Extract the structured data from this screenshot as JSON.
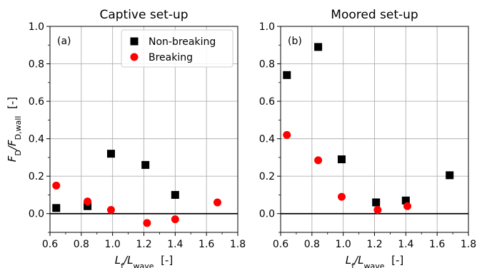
{
  "chart_data": [
    {
      "type": "scatter",
      "title": "Captive set-up",
      "panel_tag": "(a)",
      "xlabel": "L_f/L_wave [-]",
      "ylabel": "F_D/F_D,wall [-]",
      "xlim": [
        0.6,
        1.8
      ],
      "ylim": [
        -0.1,
        1.0
      ],
      "xticks": [
        "0.6",
        "0.8",
        "1.0",
        "1.2",
        "1.4",
        "1.6",
        "1.8"
      ],
      "yticks": [
        "0.0",
        "0.2",
        "0.4",
        "0.6",
        "0.8",
        "1.0"
      ],
      "grid": true,
      "zero_line": true,
      "legend_position": "top-right",
      "series": [
        {
          "name": "Non-breaking",
          "marker": "square",
          "color": "#000000",
          "points": [
            [
              0.64,
              0.03
            ],
            [
              0.84,
              0.04
            ],
            [
              0.99,
              0.32
            ],
            [
              1.21,
              0.26
            ],
            [
              1.4,
              0.1
            ]
          ]
        },
        {
          "name": "Breaking",
          "marker": "circle",
          "color": "#ff0000",
          "points": [
            [
              0.64,
              0.15
            ],
            [
              0.84,
              0.065
            ],
            [
              0.99,
              0.02
            ],
            [
              1.22,
              -0.05
            ],
            [
              1.4,
              -0.03
            ],
            [
              1.67,
              0.06
            ]
          ]
        }
      ]
    },
    {
      "type": "scatter",
      "title": "Moored set-up",
      "panel_tag": "(b)",
      "xlabel": "L_f/L_wave [-]",
      "ylabel": "",
      "xlim": [
        0.6,
        1.8
      ],
      "ylim": [
        -0.1,
        1.0
      ],
      "xticks": [
        "0.6",
        "0.8",
        "1.0",
        "1.2",
        "1.4",
        "1.6",
        "1.8"
      ],
      "yticks": [
        "0.0",
        "0.2",
        "0.4",
        "0.6",
        "0.8",
        "1.0"
      ],
      "grid": true,
      "zero_line": true,
      "series": [
        {
          "name": "Non-breaking",
          "marker": "square",
          "color": "#000000",
          "points": [
            [
              0.64,
              0.74
            ],
            [
              0.84,
              0.89
            ],
            [
              0.99,
              0.29
            ],
            [
              1.21,
              0.06
            ],
            [
              1.4,
              0.07
            ],
            [
              1.68,
              0.205
            ]
          ]
        },
        {
          "name": "Breaking",
          "marker": "circle",
          "color": "#ff0000",
          "points": [
            [
              0.64,
              0.42
            ],
            [
              0.84,
              0.285
            ],
            [
              0.99,
              0.09
            ],
            [
              1.22,
              0.02
            ],
            [
              1.41,
              0.04
            ]
          ]
        }
      ]
    }
  ]
}
